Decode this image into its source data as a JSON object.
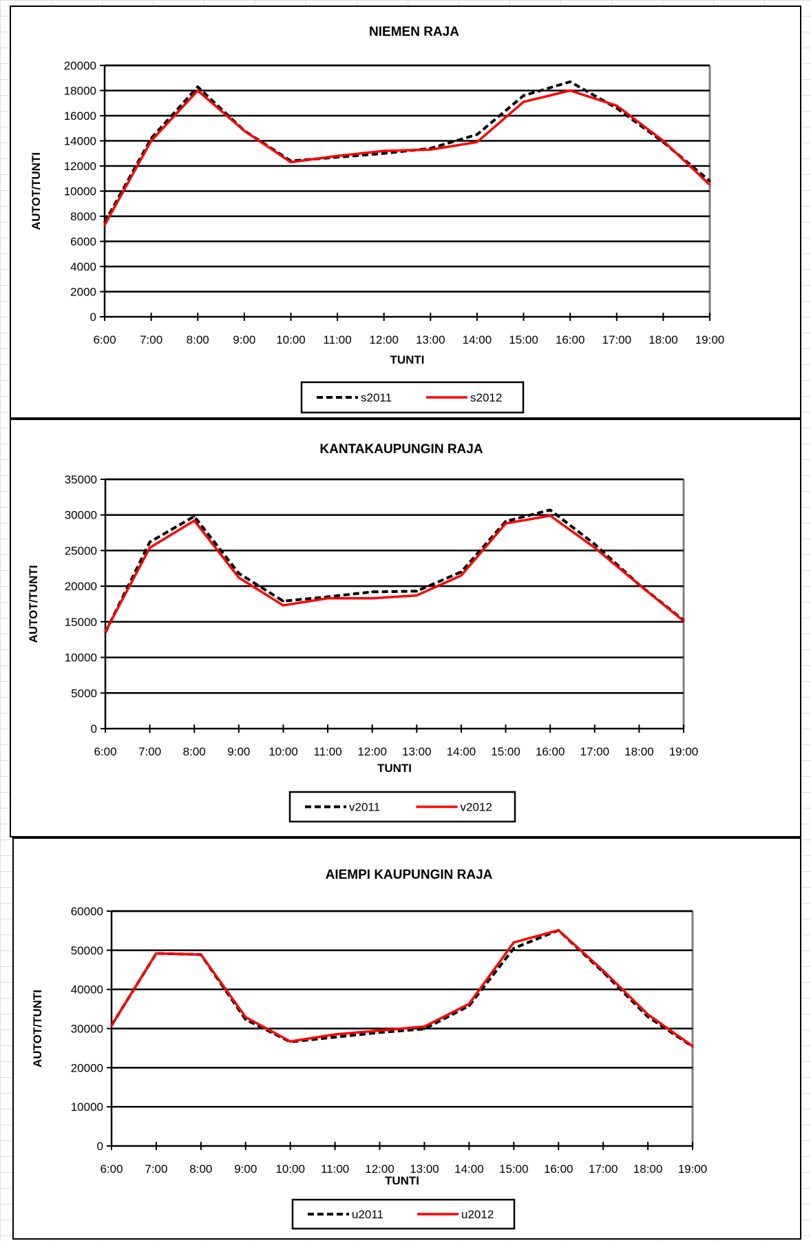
{
  "chart_data": [
    {
      "type": "line",
      "title": "NIEMEN RAJA",
      "xlabel": "TUNTI",
      "ylabel": "AUTOT/TUNTI",
      "x": [
        "6:00",
        "7:00",
        "8:00",
        "9:00",
        "10:00",
        "11:00",
        "12:00",
        "13:00",
        "14:00",
        "15:00",
        "16:00",
        "17:00",
        "18:00",
        "19:00"
      ],
      "ylim": [
        0,
        20000
      ],
      "ytick_step": 2000,
      "grid": true,
      "legend_position": "bottom",
      "series": [
        {
          "name": "s2011",
          "style": "dashed",
          "color": "#000000",
          "values": [
            7500,
            14200,
            18300,
            14800,
            12400,
            12700,
            13000,
            13400,
            14500,
            17600,
            18700,
            16600,
            13900,
            10800
          ]
        },
        {
          "name": "s2012",
          "style": "solid",
          "color": "#ff0000",
          "values": [
            7300,
            14000,
            18000,
            14800,
            12300,
            12800,
            13200,
            13300,
            13900,
            17100,
            18000,
            16800,
            14000,
            10500
          ]
        }
      ]
    },
    {
      "type": "line",
      "title": "KANTAKAUPUNGIN  RAJA",
      "xlabel": "TUNTI",
      "ylabel": "AUTOT/TUNTI",
      "x": [
        "6:00",
        "7:00",
        "8:00",
        "9:00",
        "10:00",
        "11:00",
        "12:00",
        "13:00",
        "14:00",
        "15:00",
        "16:00",
        "17:00",
        "18:00",
        "19:00"
      ],
      "ylim": [
        0,
        35000
      ],
      "ytick_step": 5000,
      "grid": true,
      "legend_position": "bottom",
      "series": [
        {
          "name": "v2011",
          "style": "dashed",
          "color": "#000000",
          "values": [
            13500,
            26200,
            29800,
            21800,
            17900,
            18500,
            19200,
            19300,
            22000,
            29100,
            30700,
            25900,
            20200,
            15200
          ]
        },
        {
          "name": "v2012",
          "style": "solid",
          "color": "#ff0000",
          "values": [
            13600,
            25400,
            29200,
            21200,
            17300,
            18300,
            18300,
            18700,
            21500,
            28800,
            29900,
            25400,
            20200,
            15100
          ]
        }
      ]
    },
    {
      "type": "line",
      "title": "AIEMPI KAUPUNGIN  RAJA",
      "xlabel": "TUNTI",
      "ylabel": "AUTOT/TUNTI",
      "x": [
        "6:00",
        "7:00",
        "8:00",
        "9:00",
        "10:00",
        "11:00",
        "12:00",
        "13:00",
        "14:00",
        "15:00",
        "16:00",
        "17:00",
        "18:00",
        "19:00"
      ],
      "ylim": [
        0,
        60000
      ],
      "ytick_step": 10000,
      "grid": true,
      "legend_position": "bottom",
      "series": [
        {
          "name": "u2011",
          "style": "dashed",
          "color": "#000000",
          "values": [
            30800,
            49200,
            48900,
            32300,
            26600,
            27800,
            29000,
            29900,
            35800,
            50500,
            55100,
            44400,
            33000,
            25400
          ]
        },
        {
          "name": "u2012",
          "style": "solid",
          "color": "#ff0000",
          "values": [
            30800,
            49200,
            48900,
            32900,
            26700,
            28500,
            29500,
            30500,
            36300,
            52000,
            55100,
            44800,
            33600,
            25500
          ]
        }
      ]
    }
  ]
}
